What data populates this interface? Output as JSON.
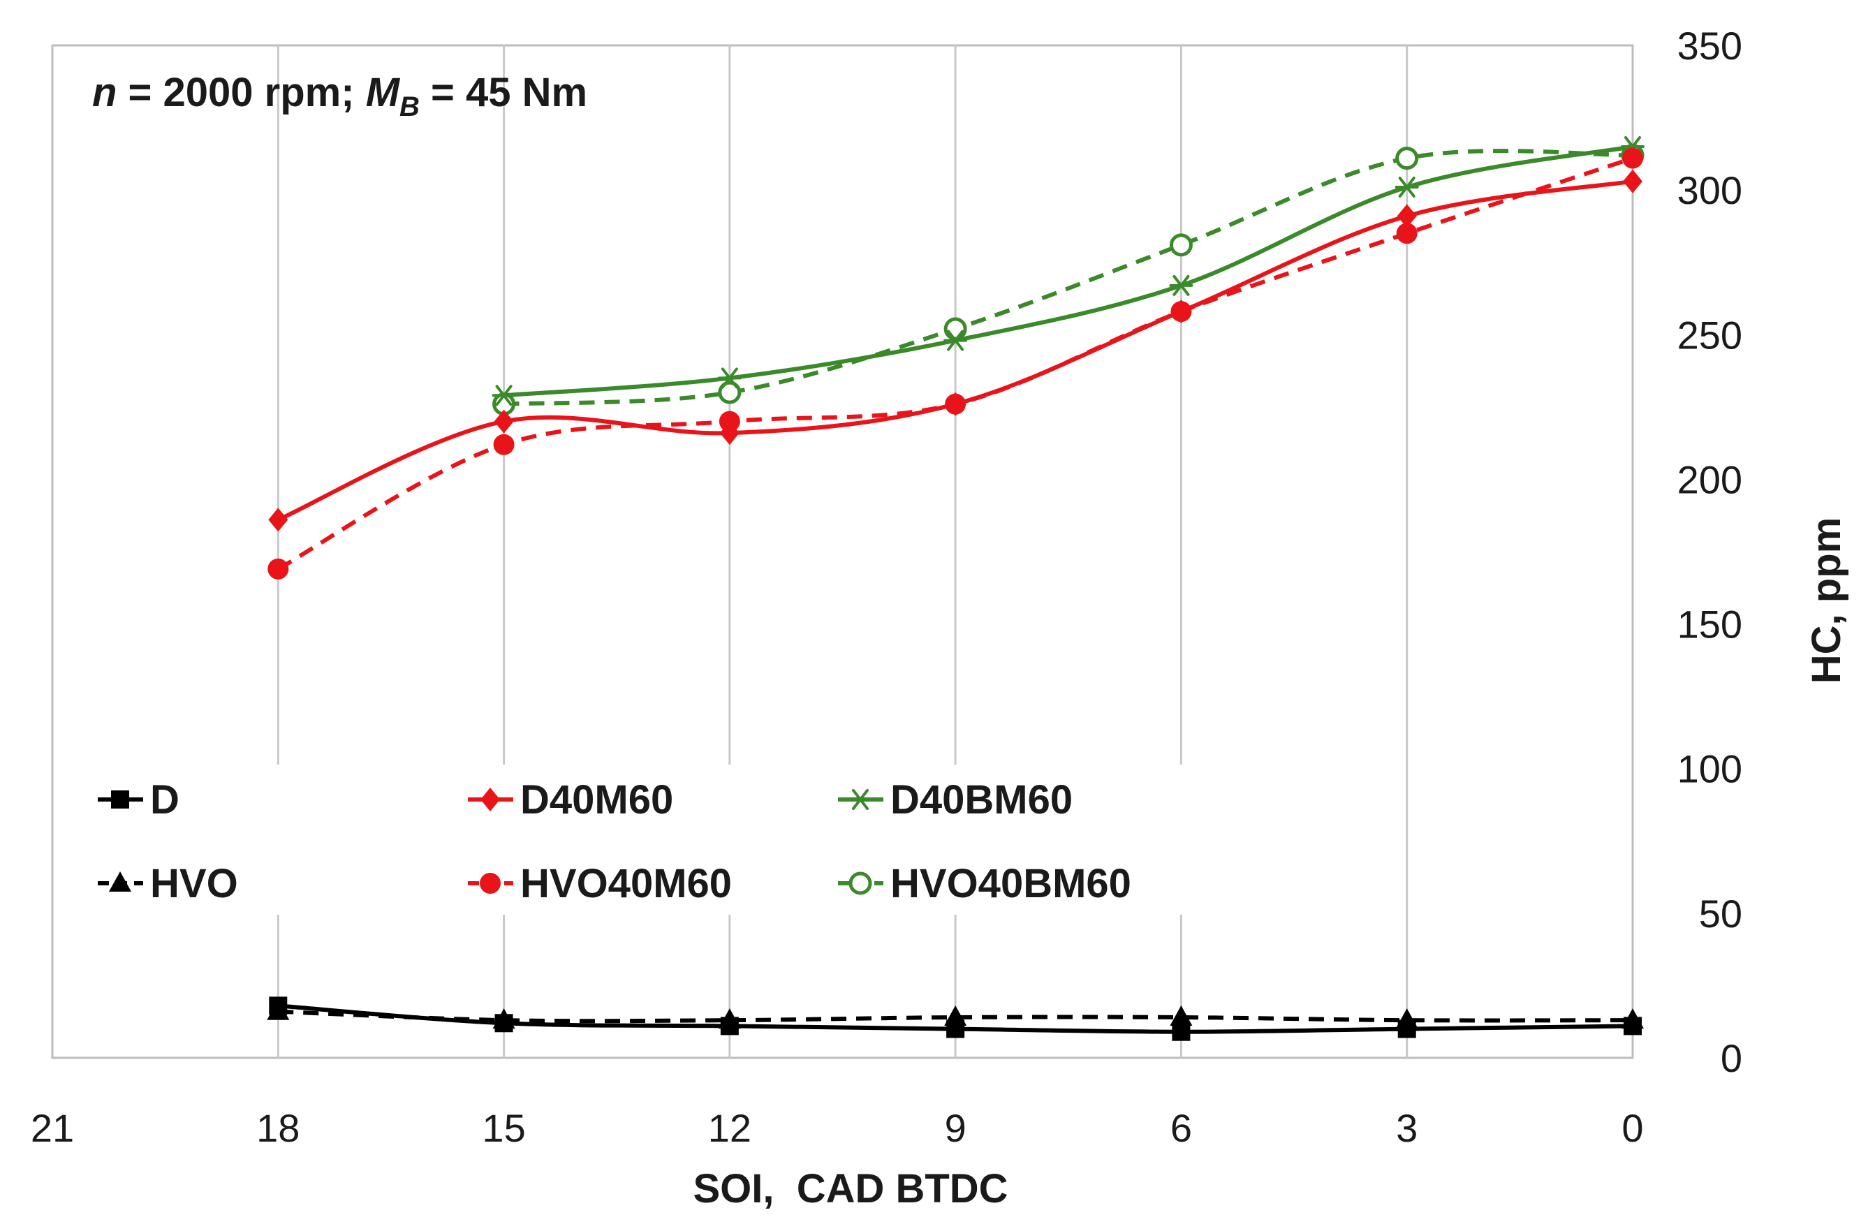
{
  "chart_data": {
    "type": "line",
    "annotation": {
      "n_label": "n",
      "n_value": " = 2000 rpm; ",
      "m_label": "M",
      "m_sub": "B",
      "m_value": " = 45 Nm"
    },
    "xlabel": "SOI,  CAD BTDC",
    "ylabel": "HC, ppm",
    "xlim": [
      21,
      0
    ],
    "ylim": [
      0,
      350
    ],
    "x_ticks": [
      21,
      18,
      15,
      12,
      9,
      6,
      3,
      0
    ],
    "y_ticks": [
      0,
      50,
      100,
      150,
      200,
      250,
      300,
      350
    ],
    "grid": "vertical",
    "x": [
      18,
      15,
      12,
      9,
      6,
      3,
      0
    ],
    "series": [
      {
        "name": "D",
        "color": "#000000",
        "dash": "solid",
        "marker": "square",
        "values": [
          18,
          12,
          11,
          10,
          9,
          10,
          11
        ]
      },
      {
        "name": "D40M60",
        "color": "#e8141a",
        "dash": "solid",
        "marker": "diamond",
        "values": [
          186,
          220,
          216,
          226,
          258,
          291,
          303
        ]
      },
      {
        "name": "D40BM60",
        "color": "#3a8a2a",
        "dash": "solid",
        "marker": "asterisk",
        "values": [
          null,
          229,
          235,
          248,
          267,
          301,
          315
        ]
      },
      {
        "name": "HVO",
        "color": "#000000",
        "dash": "dashed",
        "marker": "triangle",
        "values": [
          16,
          13,
          13,
          14,
          14,
          13,
          13
        ]
      },
      {
        "name": "HVO40M60",
        "color": "#e8141a",
        "dash": "dashed",
        "marker": "circle",
        "values": [
          169,
          212,
          220,
          226,
          258,
          285,
          311
        ]
      },
      {
        "name": "HVO40BM60",
        "color": "#3a8a2a",
        "dash": "dashed",
        "marker": "open-circle",
        "values": [
          null,
          226,
          230,
          252,
          281,
          311,
          312
        ]
      }
    ],
    "legend_placement": "bottom-left inside plot"
  }
}
